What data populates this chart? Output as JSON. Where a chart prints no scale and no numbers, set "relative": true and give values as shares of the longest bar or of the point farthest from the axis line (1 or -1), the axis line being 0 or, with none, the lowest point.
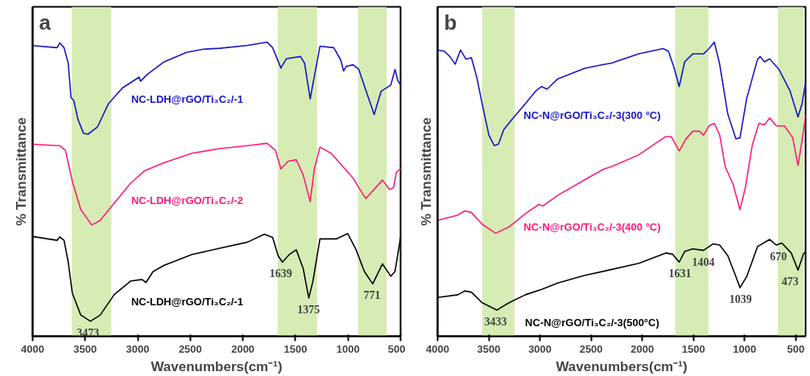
{
  "chart_data": [
    {
      "type": "line",
      "title": "a",
      "xlabel": "Wavenumbers(cm⁻¹)",
      "ylabel": "% Transmittance",
      "relative": true,
      "xlim": [
        4000,
        500
      ],
      "xticks": [
        4000,
        3500,
        3000,
        2500,
        2000,
        1500,
        1000,
        500
      ],
      "tick_labels": "x",
      "grid": false,
      "legend": false,
      "bands": [
        {
          "axis": "x",
          "from": 3627,
          "to": 3251,
          "color": "#d6ecb4"
        },
        {
          "axis": "x",
          "from": 1669,
          "to": 1294,
          "color": "#d6ecb4"
        },
        {
          "axis": "x",
          "from": 905,
          "to": 632,
          "color": "#d6ecb4"
        }
      ],
      "annotations": [
        {
          "text": "3473",
          "x": 3473,
          "y": 0.051
        },
        {
          "text": "1639",
          "x": 1639,
          "y": 0.252
        },
        {
          "text": "1375",
          "x": 1375,
          "y": 0.13
        },
        {
          "text": "771",
          "x": 771,
          "y": 0.178
        }
      ],
      "series": [
        {
          "name": "NC-LDH@rGO/Ti₃C₂/-1",
          "color": "#1414c8",
          "x": [
            4000,
            3767,
            3741,
            3701,
            3661,
            3635,
            3608,
            3569,
            3516,
            3473,
            3384,
            3278,
            3146,
            2987,
            2974,
            2907,
            2749,
            2537,
            2378,
            2220,
            1955,
            1770,
            1717,
            1638,
            1585,
            1452,
            1413,
            1360,
            1333,
            1267,
            1135,
            1069,
            1042,
            1016,
            950,
            897,
            817,
            751,
            685,
            593,
            553,
            527,
            500
          ],
          "values": [
            0.988,
            0.981,
            0.997,
            0.981,
            0.928,
            0.812,
            0.801,
            0.738,
            0.69,
            0.687,
            0.711,
            0.791,
            0.844,
            0.881,
            0.867,
            0.891,
            0.933,
            0.965,
            0.976,
            0.979,
            0.989,
            1.0,
            0.981,
            0.912,
            0.944,
            0.951,
            0.928,
            0.807,
            0.859,
            0.986,
            0.981,
            0.939,
            0.902,
            0.918,
            0.923,
            0.907,
            0.822,
            0.754,
            0.833,
            0.854,
            0.907,
            0.87,
            0.854
          ]
        },
        {
          "name": "NC-LDH@rGO/Ti₃C₂/-2",
          "color": "#ff1a7a",
          "x": [
            4000,
            3767,
            3741,
            3688,
            3622,
            3542,
            3437,
            3357,
            3225,
            3066,
            2934,
            2749,
            2484,
            2220,
            1955,
            1770,
            1690,
            1638,
            1571,
            1492,
            1426,
            1360,
            1320,
            1267,
            1161,
            1029,
            950,
            897,
            831,
            738,
            672,
            606,
            566,
            540,
            500
          ],
          "values": [
            0.653,
            0.648,
            0.648,
            0.632,
            0.526,
            0.431,
            0.378,
            0.394,
            0.452,
            0.521,
            0.563,
            0.59,
            0.622,
            0.638,
            0.648,
            0.656,
            0.632,
            0.569,
            0.595,
            0.6,
            0.548,
            0.458,
            0.569,
            0.643,
            0.622,
            0.569,
            0.537,
            0.505,
            0.468,
            0.505,
            0.531,
            0.499,
            0.505,
            0.558,
            0.569
          ]
        },
        {
          "name": "NC-LDH@rGO/Ti₃C₂/-1",
          "color": "#000000",
          "x": [
            4000,
            3767,
            3741,
            3701,
            3661,
            3622,
            3542,
            3450,
            3357,
            3225,
            3066,
            2960,
            2921,
            2854,
            2749,
            2484,
            2220,
            1955,
            1796,
            1717,
            1664,
            1624,
            1558,
            1492,
            1426,
            1373,
            1333,
            1267,
            1108,
            1003,
            923,
            844,
            765,
            672,
            593,
            553,
            500
          ],
          "values": [
            0.339,
            0.326,
            0.338,
            0.326,
            0.252,
            0.146,
            0.072,
            0.051,
            0.072,
            0.141,
            0.188,
            0.193,
            0.183,
            0.22,
            0.241,
            0.278,
            0.299,
            0.32,
            0.347,
            0.336,
            0.273,
            0.252,
            0.278,
            0.294,
            0.23,
            0.13,
            0.188,
            0.331,
            0.331,
            0.349,
            0.294,
            0.22,
            0.178,
            0.246,
            0.204,
            0.22,
            0.336
          ]
        }
      ]
    },
    {
      "type": "line",
      "title": "b",
      "xlabel": "Wavenumbers(cm⁻¹)",
      "ylabel": "% Transmittance",
      "relative": true,
      "xlim": [
        4000,
        404
      ],
      "xticks": [
        4000,
        3500,
        3000,
        2500,
        2000,
        1500,
        1000,
        500
      ],
      "tick_labels": "x",
      "grid": false,
      "legend": false,
      "bands": [
        {
          "axis": "x",
          "from": 3565,
          "to": 3248,
          "color": "#d6ecb4"
        },
        {
          "axis": "x",
          "from": 1678,
          "to": 1354,
          "color": "#d6ecb4"
        },
        {
          "axis": "x",
          "from": 675,
          "to": 425,
          "color": "#d6ecb4"
        }
      ],
      "annotations": [
        {
          "text": "3433",
          "x": 3433,
          "y": 0.089
        },
        {
          "text": "1631",
          "x": 1631,
          "y": 0.252
        },
        {
          "text": "1404",
          "x": 1404,
          "y": 0.292
        },
        {
          "text": "1039",
          "x": 1039,
          "y": 0.165
        },
        {
          "text": "670",
          "x": 670,
          "y": 0.31
        },
        {
          "text": "473",
          "x": 473,
          "y": 0.225
        }
      ],
      "series": [
        {
          "name": "NC-N@rGO/Ti₃C₂/-3(300 °C)",
          "color": "#1414c8",
          "x": [
            4000,
            3934,
            3881,
            3828,
            3776,
            3723,
            3670,
            3617,
            3565,
            3499,
            3446,
            3406,
            3354,
            3274,
            3142,
            3037,
            2984,
            2931,
            2826,
            2562,
            2377,
            2298,
            2034,
            1797,
            1744,
            1691,
            1639,
            1586,
            1507,
            1401,
            1348,
            1296,
            1243,
            1164,
            1085,
            1045,
            979,
            873,
            847,
            807,
            755,
            662,
            557,
            478,
            438,
            404
          ],
          "values": [
            0.973,
            0.969,
            0.951,
            0.925,
            0.973,
            0.942,
            0.947,
            0.88,
            0.791,
            0.684,
            0.648,
            0.653,
            0.702,
            0.737,
            0.791,
            0.835,
            0.849,
            0.84,
            0.875,
            0.911,
            0.924,
            0.929,
            0.96,
            0.978,
            0.969,
            0.915,
            0.849,
            0.933,
            0.96,
            0.96,
            0.978,
            1.0,
            0.924,
            0.755,
            0.671,
            0.675,
            0.809,
            0.942,
            0.951,
            0.933,
            0.943,
            0.906,
            0.835,
            0.746,
            0.791,
            0.862
          ]
        },
        {
          "name": "NC-N@rGO/Ti₃C₂/-3(400 °C)",
          "color": "#ff1a7a",
          "x": [
            4000,
            3802,
            3736,
            3670,
            3565,
            3433,
            3301,
            3142,
            3011,
            2971,
            2826,
            2562,
            2377,
            2298,
            2034,
            1770,
            1718,
            1639,
            1573,
            1507,
            1441,
            1401,
            1348,
            1296,
            1243,
            1190,
            1111,
            1045,
            992,
            926,
            860,
            807,
            755,
            689,
            610,
            530,
            478,
            438,
            404
          ],
          "values": [
            0.394,
            0.412,
            0.426,
            0.421,
            0.381,
            0.35,
            0.372,
            0.417,
            0.448,
            0.443,
            0.479,
            0.532,
            0.568,
            0.577,
            0.617,
            0.679,
            0.679,
            0.63,
            0.671,
            0.697,
            0.697,
            0.684,
            0.715,
            0.724,
            0.684,
            0.577,
            0.515,
            0.43,
            0.506,
            0.648,
            0.724,
            0.719,
            0.742,
            0.715,
            0.715,
            0.675,
            0.581,
            0.666,
            0.751
          ]
        },
        {
          "name": "NC-N@rGO/Ti₃C₂/-3(500°C)",
          "color": "#000000",
          "x": [
            4000,
            3802,
            3736,
            3670,
            3565,
            3420,
            3301,
            3142,
            2984,
            2826,
            2562,
            2377,
            2034,
            1770,
            1704,
            1639,
            1586,
            1507,
            1401,
            1309,
            1243,
            1164,
            1085,
            1045,
            979,
            873,
            755,
            689,
            636,
            544,
            478,
            425,
            404
          ],
          "values": [
            0.132,
            0.141,
            0.154,
            0.15,
            0.114,
            0.089,
            0.114,
            0.141,
            0.159,
            0.181,
            0.207,
            0.221,
            0.248,
            0.283,
            0.279,
            0.252,
            0.288,
            0.297,
            0.292,
            0.314,
            0.31,
            0.274,
            0.203,
            0.165,
            0.203,
            0.305,
            0.329,
            0.31,
            0.317,
            0.283,
            0.225,
            0.279,
            0.288
          ]
        }
      ]
    }
  ]
}
